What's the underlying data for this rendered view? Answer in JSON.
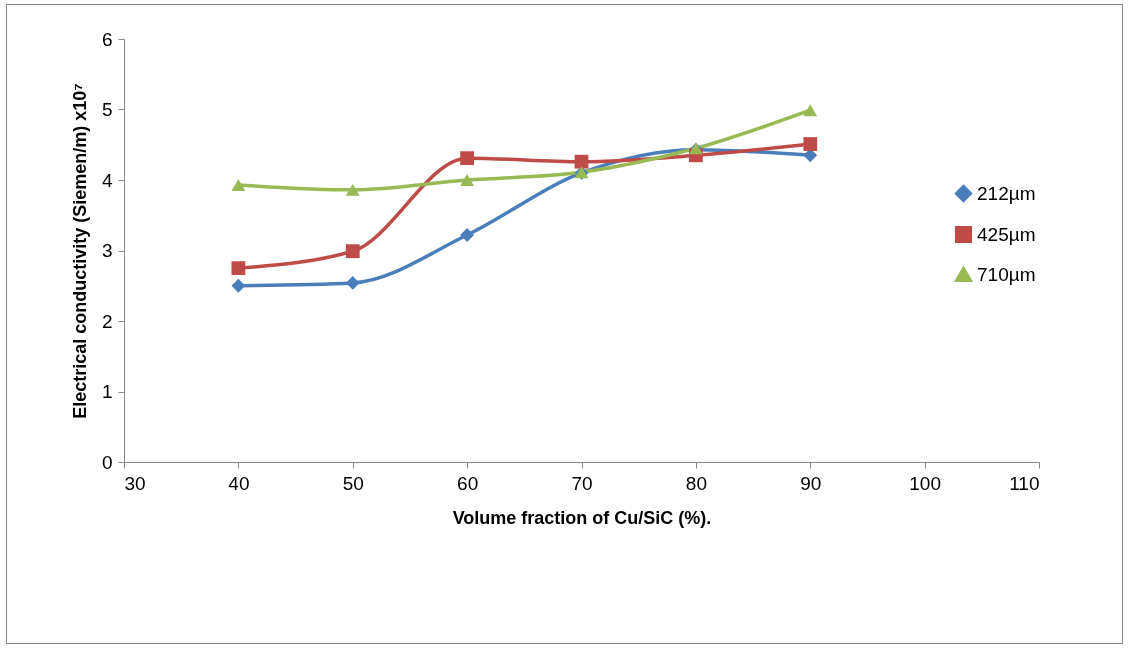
{
  "chart_data": {
    "type": "line",
    "xlabel": "Volume fraction of Cu/SiC (%).",
    "ylabel": "Electrical conductivity (Siemen/m) x10⁷",
    "x": [
      40,
      50,
      60,
      70,
      80,
      90
    ],
    "series": [
      {
        "name": "212µm",
        "color": "#4a7ebb",
        "marker": "diamond",
        "values": [
          2.5,
          2.54,
          3.22,
          4.1,
          4.43,
          4.35
        ]
      },
      {
        "name": "425µm",
        "color": "#be4b48",
        "marker": "square",
        "values": [
          2.75,
          2.99,
          4.31,
          4.26,
          4.35,
          4.51
        ]
      },
      {
        "name": "710µm",
        "color": "#98b954",
        "marker": "triangle",
        "values": [
          3.93,
          3.86,
          4.0,
          4.11,
          4.45,
          4.99
        ]
      }
    ],
    "xlim": [
      30,
      110
    ],
    "xticks": [
      30,
      40,
      50,
      60,
      70,
      80,
      90,
      100,
      110
    ],
    "ylim": [
      0,
      6
    ],
    "yticks": [
      0,
      1,
      2,
      3,
      4,
      5,
      6
    ],
    "grid": false,
    "legend": "right",
    "line_style": "solid"
  }
}
